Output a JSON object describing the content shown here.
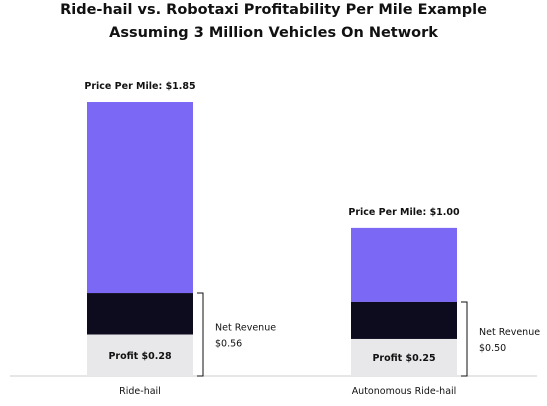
{
  "chart_data": {
    "type": "bar",
    "stacked": true,
    "title_line1": "Ride-hail vs. Robotaxi Profitability Per Mile Example",
    "title_line2": "Assuming 3 Million Vehicles On Network",
    "xlabel": "",
    "ylabel": "",
    "grid": false,
    "ylim": [
      0,
      1.9
    ],
    "categories": [
      "Ride-hail",
      "Autonomous Ride-hail"
    ],
    "bars": [
      {
        "category": "Ride-hail",
        "total": 1.85,
        "profit": 0.28,
        "net_revenue": 0.56,
        "price_label": "Price Per Mile: $1.85",
        "profit_label": "Profit $0.28",
        "net_revenue_label_line1": "Net Revenue",
        "net_revenue_label_line2": "$0.56"
      },
      {
        "category": "Autonomous Ride-hail",
        "total": 1.0,
        "profit": 0.25,
        "net_revenue": 0.5,
        "price_label": "Price Per Mile: $1.00",
        "profit_label": "Profit $0.25",
        "net_revenue_label_line1": "Net Revenue",
        "net_revenue_label_line2": "$0.50"
      }
    ],
    "colors": {
      "remaining": "#7b68f4",
      "net_revenue_minus_profit": "#0d0c1f",
      "profit": "#e8e8ea",
      "axis": "#cccccc",
      "bracket": "#111111"
    }
  }
}
